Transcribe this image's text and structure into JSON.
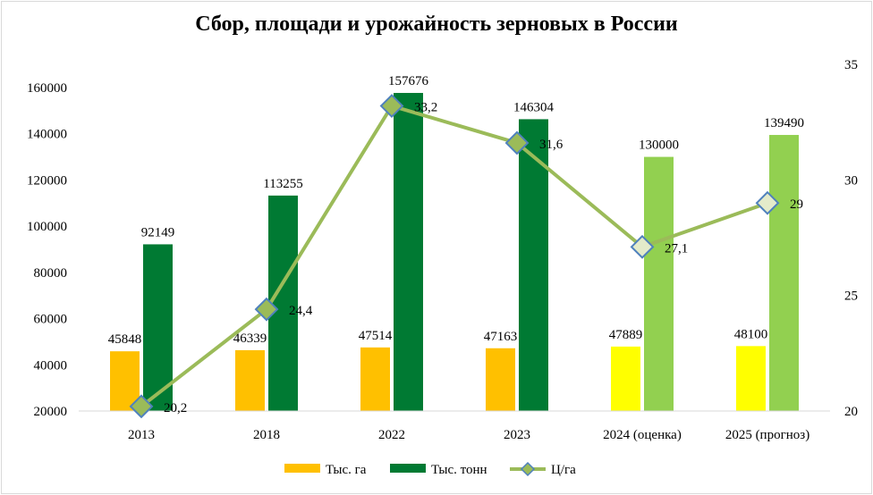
{
  "chart_data": {
    "type": "bar",
    "title": "Сбор, площади и урожайность  зерновых в России",
    "categories": [
      "2013",
      "2018",
      "2022",
      "2023",
      "2024 (оценка)",
      "2025 (прогноз)"
    ],
    "series": [
      {
        "name": "Тыс. га",
        "type": "bar",
        "axis": "left",
        "values": [
          45848,
          46339,
          47514,
          47163,
          47889,
          48100
        ],
        "labels": [
          "45848",
          "46339",
          "47514",
          "47163",
          "47889",
          "48100"
        ]
      },
      {
        "name": "Тыс. тонн",
        "type": "bar",
        "axis": "left",
        "values": [
          92149,
          113255,
          157676,
          146304,
          130000,
          139490
        ],
        "labels": [
          "92149",
          "113255",
          "157676",
          "146304",
          "130000",
          "139490"
        ]
      },
      {
        "name": "Ц/га",
        "type": "line",
        "axis": "right",
        "values": [
          20.2,
          24.4,
          33.2,
          31.6,
          27.1,
          29
        ],
        "labels": [
          "20,2",
          "24,4",
          "33,2",
          "31,6",
          "27,1",
          "29"
        ]
      }
    ],
    "ylim": [
      20000,
      160000
    ],
    "y_ticks": [
      "20000",
      "40000",
      "60000",
      "80000",
      "100000",
      "120000",
      "140000",
      "160000"
    ],
    "y2lim": [
      20,
      35
    ],
    "y2_ticks": [
      "20",
      "25",
      "30",
      "35"
    ],
    "grid": false,
    "legend": "bottom",
    "colors": {
      "area_actual": "#ffc000",
      "area_forecast": "#ffff00",
      "harvest_actual": "#007a33",
      "harvest_forecast": "#92d050",
      "yield_line": "#9bbb59",
      "marker_actual": "#9bbb59",
      "marker_forecast": "#e4ebca",
      "marker_border": "#4f81bd"
    },
    "forecast_from_index": 4
  }
}
